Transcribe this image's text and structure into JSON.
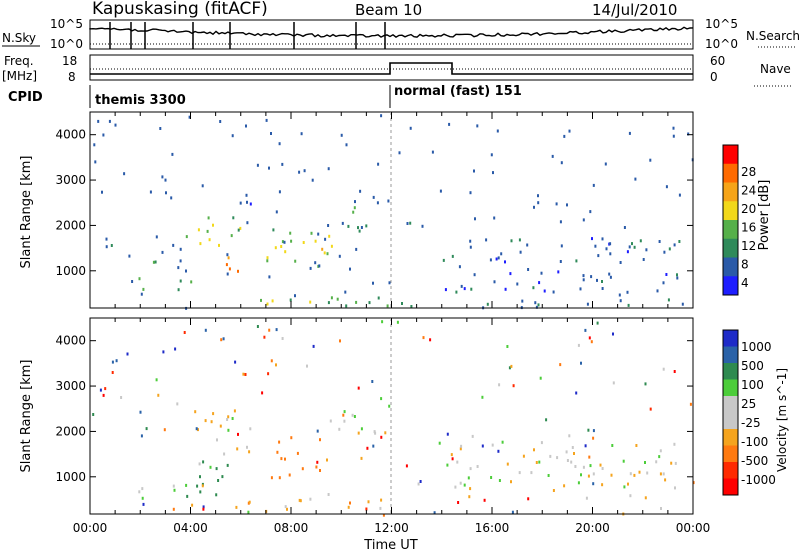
{
  "header": {
    "station": "Kapuskasing (fitACF)",
    "beam": "Beam 10",
    "date": "14/Jul/2010"
  },
  "noise_panel": {
    "left_label": "N.Sky",
    "left_ticks": [
      "10^5",
      "10^0"
    ],
    "right_label": "N.Search",
    "right_ticks": [
      "10^5",
      "10^0"
    ]
  },
  "freq_panel": {
    "left_label_1": "Freq.",
    "left_label_2": "[MHz]",
    "left_ticks": [
      "18",
      "8"
    ],
    "right_label": "Nave",
    "right_ticks": [
      "60",
      "0"
    ]
  },
  "cpid_panel": {
    "label": "CPID",
    "modes": [
      {
        "name": "themis 3300",
        "start_hour": 0
      },
      {
        "name": "normal (fast) 151",
        "start_hour": 12
      }
    ]
  },
  "colors": {
    "power_scale": [
      "#1e1eff",
      "#2a5aa8",
      "#2f8a5a",
      "#56b04a",
      "#f2d81a",
      "#f6a418",
      "#ff6a00",
      "#ff0000"
    ],
    "velocity_scale": [
      "#1e2bc8",
      "#2a62a8",
      "#2e8a50",
      "#4ccd3a",
      "#c8c8c8",
      "#c8c8c8",
      "#f5a41e",
      "#ff7a10",
      "#ff2a00",
      "#ff0000"
    ]
  },
  "chart_data": [
    {
      "type": "heatmap",
      "title": "Power",
      "xlabel": "Time UT",
      "ylabel": "Slant Range [km]",
      "x_ticks": [
        "00:00",
        "04:00",
        "08:00",
        "12:00",
        "16:00",
        "20:00",
        "00:00"
      ],
      "xlim_hours": [
        0,
        24
      ],
      "ylim": [
        180,
        4500
      ],
      "y_ticks": [
        1000,
        2000,
        3000,
        4000
      ],
      "colorbar": {
        "label": "Power [dB]",
        "ticks": [
          "28",
          "24",
          "20",
          "16",
          "12",
          "8",
          "4"
        ],
        "range": [
          0,
          30
        ]
      },
      "regions": [
        {
          "t0": 0.5,
          "t1": 1.0,
          "r0": 1500,
          "r1": 1800,
          "level": 8
        },
        {
          "t0": 1.5,
          "t1": 4.0,
          "r0": 550,
          "r1": 900,
          "level": 10
        },
        {
          "t0": 2.0,
          "t1": 3.8,
          "r0": 1000,
          "r1": 1600,
          "level": 8
        },
        {
          "t0": 3.8,
          "t1": 6.0,
          "r0": 1500,
          "r1": 2500,
          "level": 14
        },
        {
          "t0": 4.8,
          "t1": 5.9,
          "r0": 900,
          "r1": 1500,
          "level": 26
        },
        {
          "t0": 5.0,
          "t1": 6.5,
          "r0": 2200,
          "r1": 2700,
          "level": 6
        },
        {
          "t0": 7.0,
          "t1": 10.0,
          "r0": 1000,
          "r1": 2000,
          "level": 14
        },
        {
          "t0": 8.5,
          "t1": 9.5,
          "r0": 1300,
          "r1": 1700,
          "level": 18
        },
        {
          "t0": 10.0,
          "t1": 12.0,
          "r0": 1900,
          "r1": 2800,
          "level": 8
        },
        {
          "t0": 4.0,
          "t1": 12.0,
          "r0": 250,
          "r1": 550,
          "level": 12
        },
        {
          "t0": 12.5,
          "t1": 13.2,
          "r0": 1700,
          "r1": 2100,
          "level": 6
        },
        {
          "t0": 14.0,
          "t1": 23.5,
          "r0": 1200,
          "r1": 1800,
          "level": 6
        },
        {
          "t0": 14.0,
          "t1": 23.5,
          "r0": 550,
          "r1": 1050,
          "level": 6
        },
        {
          "t0": 12.0,
          "t1": 24.0,
          "r0": 200,
          "r1": 400,
          "level": 6
        }
      ]
    },
    {
      "type": "heatmap",
      "title": "Velocity",
      "xlabel": "Time UT",
      "ylabel": "Slant Range [km]",
      "x_ticks": [
        "00:00",
        "04:00",
        "08:00",
        "12:00",
        "16:00",
        "20:00",
        "00:00"
      ],
      "xlim_hours": [
        0,
        24
      ],
      "ylim": [
        180,
        4500
      ],
      "y_ticks": [
        1000,
        2000,
        3000,
        4000
      ],
      "colorbar": {
        "label": "Velocity [m s^-1]",
        "ticks": [
          "1000",
          "500",
          "100",
          "25",
          "-25",
          "-100",
          "-500",
          "-1000"
        ]
      },
      "regions": [
        {
          "t0": 1.5,
          "t1": 4.0,
          "r0": 550,
          "r1": 900,
          "velocity": 0
        },
        {
          "t0": 3.8,
          "t1": 6.2,
          "r0": 600,
          "r1": 1500,
          "velocity": 150
        },
        {
          "t0": 4.0,
          "t1": 6.5,
          "r0": 1500,
          "r1": 2600,
          "velocity": 0
        },
        {
          "t0": 7.2,
          "t1": 9.8,
          "r0": 1000,
          "r1": 2000,
          "velocity": -150
        },
        {
          "t0": 10.0,
          "t1": 12.0,
          "r0": 1800,
          "r1": 2800,
          "velocity": 0
        },
        {
          "t0": 14.0,
          "t1": 23.5,
          "r0": 550,
          "r1": 1800,
          "velocity": 0
        },
        {
          "t0": 4.0,
          "t1": 12.0,
          "r0": 250,
          "r1": 550,
          "velocity": -50
        }
      ]
    }
  ]
}
